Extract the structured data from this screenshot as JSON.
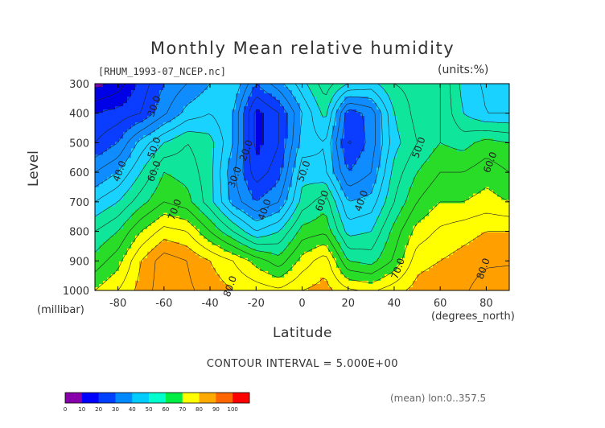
{
  "page": {
    "title": "Monthly Mean relative humidity",
    "source_file": "[RHUM_1993-07_NCEP.nc]",
    "units": "(units:%)",
    "contour_interval": "CONTOUR INTERVAL = 5.000E+00",
    "subset_note": "(mean) lon:0..357.5"
  },
  "chart_data": {
    "type": "heatmap",
    "title": "Monthly Mean relative humidity",
    "xlabel": "Latitude",
    "x_units": "(degrees_north)",
    "ylabel": "Level",
    "y_units": "(millibar)",
    "xlim": [
      -90,
      90
    ],
    "ylim": [
      1000,
      300
    ],
    "x_ticks": [
      -80,
      -60,
      -40,
      -20,
      0,
      20,
      40,
      60,
      80
    ],
    "y_ticks": [
      300,
      400,
      500,
      600,
      700,
      800,
      900,
      1000
    ],
    "x_tick_labels": [
      "-80",
      "-60",
      "-40",
      "-20",
      "0",
      "20",
      "40",
      "60",
      "80"
    ],
    "y_tick_labels": [
      "300",
      "400",
      "500",
      "600",
      "700",
      "800",
      "900",
      "1000"
    ],
    "latitude": [
      -90,
      -80,
      -70,
      -60,
      -50,
      -40,
      -30,
      -20,
      -10,
      0,
      10,
      20,
      30,
      40,
      50,
      60,
      70,
      80,
      90
    ],
    "levels_mb": [
      300,
      400,
      500,
      600,
      700,
      800,
      900,
      1000
    ],
    "humidity_percent": [
      [
        8,
        12,
        22,
        30,
        35,
        40,
        45,
        30,
        38,
        48,
        58,
        50,
        48,
        55,
        57,
        60,
        48,
        44,
        42
      ],
      [
        20,
        22,
        25,
        34,
        42,
        45,
        40,
        18,
        25,
        40,
        52,
        27,
        32,
        50,
        57,
        60,
        50,
        45,
        45
      ],
      [
        25,
        30,
        42,
        50,
        55,
        52,
        40,
        18,
        25,
        42,
        45,
        24,
        32,
        48,
        55,
        60,
        58,
        62,
        60
      ],
      [
        35,
        40,
        50,
        60,
        58,
        52,
        36,
        22,
        28,
        48,
        46,
        30,
        35,
        52,
        60,
        65,
        65,
        68,
        65
      ],
      [
        45,
        50,
        58,
        65,
        62,
        52,
        38,
        30,
        35,
        52,
        58,
        40,
        42,
        55,
        65,
        70,
        70,
        72,
        70
      ],
      [
        55,
        60,
        70,
        77,
        75,
        65,
        55,
        45,
        50,
        62,
        64,
        48,
        50,
        62,
        72,
        76,
        78,
        80,
        80
      ],
      [
        62,
        68,
        80,
        88,
        85,
        80,
        75,
        68,
        62,
        72,
        78,
        60,
        58,
        66,
        78,
        80,
        82,
        84,
        84
      ],
      [
        70,
        75,
        82,
        88,
        86,
        83,
        80,
        78,
        76,
        80,
        82,
        76,
        74,
        78,
        82,
        84,
        84,
        88,
        90
      ]
    ],
    "contour_labels": [
      {
        "text": "30.0",
        "lat": -63,
        "level": 380
      },
      {
        "text": "50.0",
        "lat": -63,
        "level": 520
      },
      {
        "text": "60.0",
        "lat": -63,
        "level": 600
      },
      {
        "text": "40.0",
        "lat": -78,
        "level": 600
      },
      {
        "text": "70.0",
        "lat": -54,
        "level": 730
      },
      {
        "text": "20.0",
        "lat": -23,
        "level": 530
      },
      {
        "text": "30.0",
        "lat": -28,
        "level": 620
      },
      {
        "text": "40.0",
        "lat": -15,
        "level": 730
      },
      {
        "text": "50.0",
        "lat": 2,
        "level": 600
      },
      {
        "text": "60.0",
        "lat": 10,
        "level": 700
      },
      {
        "text": "40.0",
        "lat": 27,
        "level": 700
      },
      {
        "text": "50.0",
        "lat": 52,
        "level": 520
      },
      {
        "text": "60.0",
        "lat": 83,
        "level": 570
      },
      {
        "text": "70.0",
        "lat": 43,
        "level": 930
      },
      {
        "text": "80.0",
        "lat": 80,
        "level": 930
      },
      {
        "text": "80.0",
        "lat": -30,
        "level": 990
      }
    ],
    "colorbar": {
      "colors": [
        "#8800aa",
        "#0000ff",
        "#0040ff",
        "#0088ff",
        "#00ccff",
        "#00ffcc",
        "#00ee44",
        "#ffff00",
        "#ffaa00",
        "#ff6600",
        "#ff0000"
      ],
      "tick_labels": [
        "0",
        "10",
        "20",
        "30",
        "40",
        "50",
        "60",
        "70",
        "80",
        "90",
        "100"
      ]
    },
    "fill_levels": [
      10,
      20,
      30,
      40,
      50,
      60,
      70,
      80,
      90
    ],
    "fill_colors": [
      "#7f00b5",
      "#0000e6",
      "#0a3dff",
      "#0f8cff",
      "#19d2ff",
      "#0fe69b",
      "#28dc28",
      "#ffff00",
      "#ffa000",
      "#ff6a00",
      "#ff0000"
    ],
    "grid": false,
    "legend": "bottom-left"
  }
}
